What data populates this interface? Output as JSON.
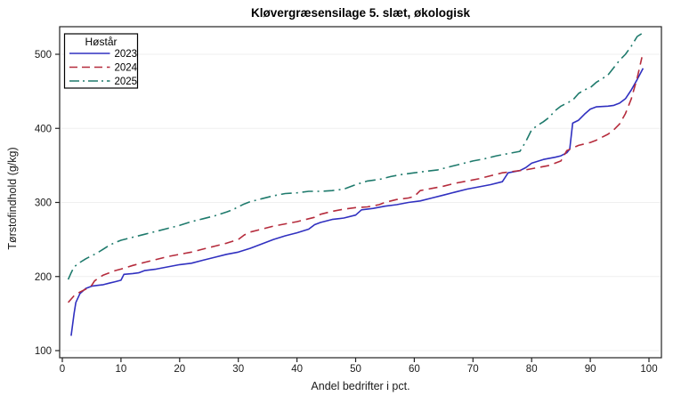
{
  "chart": {
    "background": "#ffffff",
    "plot_border_color": "#222222",
    "grid_color": "#efefef",
    "tick_color": "#222222",
    "text_color": "#1a1a1a"
  },
  "chart_data": {
    "type": "line",
    "title": "Kløvergræsensilage 5. slæt, økologisk",
    "xlabel": "Andel bedrifter i pct.",
    "ylabel": "Tørstofindhold (g/kg)",
    "xlim": [
      0,
      100
    ],
    "ylim": [
      100,
      530
    ],
    "x_ticks": [
      0,
      10,
      20,
      30,
      40,
      50,
      60,
      70,
      80,
      90,
      100
    ],
    "y_ticks": [
      100,
      200,
      300,
      400,
      500
    ],
    "grid": "horizontal-light",
    "legend": {
      "title": "Høstår",
      "position": "top-left-inside"
    },
    "series": [
      {
        "name": "2023",
        "color": "#3030C0",
        "style": "solid",
        "points": [
          [
            1.5,
            120
          ],
          [
            2,
            150
          ],
          [
            2.3,
            165
          ],
          [
            3,
            177
          ],
          [
            4,
            184
          ],
          [
            5,
            187
          ],
          [
            6,
            188
          ],
          [
            7,
            189
          ],
          [
            8,
            191
          ],
          [
            9,
            193
          ],
          [
            10,
            195
          ],
          [
            10.5,
            203
          ],
          [
            12,
            204
          ],
          [
            13,
            205
          ],
          [
            14,
            208
          ],
          [
            16,
            210
          ],
          [
            18,
            213
          ],
          [
            20,
            216
          ],
          [
            22,
            218
          ],
          [
            24,
            222
          ],
          [
            26,
            226
          ],
          [
            28,
            230
          ],
          [
            30,
            233
          ],
          [
            32,
            238
          ],
          [
            34,
            244
          ],
          [
            36,
            250
          ],
          [
            38,
            255
          ],
          [
            40,
            259
          ],
          [
            42,
            264
          ],
          [
            43,
            270
          ],
          [
            44,
            273
          ],
          [
            46,
            277
          ],
          [
            48,
            279
          ],
          [
            50,
            283
          ],
          [
            51,
            290
          ],
          [
            53,
            292
          ],
          [
            55,
            295
          ],
          [
            57,
            297
          ],
          [
            59,
            300
          ],
          [
            61,
            302
          ],
          [
            63,
            306
          ],
          [
            65,
            310
          ],
          [
            67,
            314
          ],
          [
            69,
            318
          ],
          [
            71,
            321
          ],
          [
            73,
            324
          ],
          [
            75,
            328
          ],
          [
            76,
            340
          ],
          [
            78,
            343
          ],
          [
            79,
            347
          ],
          [
            80,
            353
          ],
          [
            82,
            358
          ],
          [
            84,
            361
          ],
          [
            85,
            363
          ],
          [
            86,
            367
          ],
          [
            86.5,
            372
          ],
          [
            87,
            407
          ],
          [
            88,
            411
          ],
          [
            89,
            419
          ],
          [
            90,
            426
          ],
          [
            91,
            429
          ],
          [
            93,
            430
          ],
          [
            94,
            431
          ],
          [
            95,
            434
          ],
          [
            96,
            440
          ],
          [
            97,
            452
          ],
          [
            98,
            466
          ],
          [
            99,
            481
          ]
        ]
      },
      {
        "name": "2024",
        "color": "#B52B3C",
        "style": "dashed",
        "points": [
          [
            1,
            165
          ],
          [
            2,
            174
          ],
          [
            3,
            179
          ],
          [
            4,
            183
          ],
          [
            5,
            188
          ],
          [
            5.5,
            194
          ],
          [
            6,
            197
          ],
          [
            7,
            202
          ],
          [
            8,
            205
          ],
          [
            9,
            208
          ],
          [
            10,
            210
          ],
          [
            12,
            215
          ],
          [
            14,
            219
          ],
          [
            16,
            223
          ],
          [
            18,
            227
          ],
          [
            20,
            230
          ],
          [
            22,
            233
          ],
          [
            24,
            237
          ],
          [
            26,
            241
          ],
          [
            28,
            245
          ],
          [
            30,
            250
          ],
          [
            31,
            256
          ],
          [
            32,
            260
          ],
          [
            34,
            264
          ],
          [
            36,
            268
          ],
          [
            38,
            271
          ],
          [
            40,
            274
          ],
          [
            42,
            278
          ],
          [
            43,
            280
          ],
          [
            44,
            284
          ],
          [
            46,
            288
          ],
          [
            48,
            291
          ],
          [
            50,
            293
          ],
          [
            52,
            294
          ],
          [
            54,
            297
          ],
          [
            55,
            300
          ],
          [
            57,
            304
          ],
          [
            59,
            306
          ],
          [
            60,
            308
          ],
          [
            61,
            316
          ],
          [
            63,
            319
          ],
          [
            65,
            322
          ],
          [
            67,
            326
          ],
          [
            69,
            329
          ],
          [
            71,
            332
          ],
          [
            73,
            336
          ],
          [
            75,
            340
          ],
          [
            77,
            342
          ],
          [
            79,
            344
          ],
          [
            81,
            347
          ],
          [
            83,
            350
          ],
          [
            85,
            356
          ],
          [
            86,
            370
          ],
          [
            88,
            377
          ],
          [
            90,
            381
          ],
          [
            91,
            384
          ],
          [
            92,
            388
          ],
          [
            93,
            392
          ],
          [
            94,
            398
          ],
          [
            95,
            406
          ],
          [
            96,
            420
          ],
          [
            97,
            440
          ],
          [
            98,
            468
          ],
          [
            98.8,
            496
          ]
        ]
      },
      {
        "name": "2025",
        "color": "#1E7A6C",
        "style": "dash-dot",
        "points": [
          [
            1,
            196
          ],
          [
            1.5,
            205
          ],
          [
            2,
            213
          ],
          [
            3,
            219
          ],
          [
            4,
            224
          ],
          [
            5,
            228
          ],
          [
            6,
            232
          ],
          [
            7,
            237
          ],
          [
            8,
            242
          ],
          [
            9,
            246
          ],
          [
            10,
            249
          ],
          [
            12,
            253
          ],
          [
            14,
            257
          ],
          [
            16,
            261
          ],
          [
            18,
            265
          ],
          [
            20,
            269
          ],
          [
            22,
            274
          ],
          [
            24,
            278
          ],
          [
            26,
            282
          ],
          [
            28,
            287
          ],
          [
            29,
            290
          ],
          [
            30,
            294
          ],
          [
            31,
            298
          ],
          [
            32,
            301
          ],
          [
            34,
            305
          ],
          [
            36,
            309
          ],
          [
            38,
            312
          ],
          [
            40,
            313
          ],
          [
            42,
            315
          ],
          [
            44,
            315
          ],
          [
            46,
            316
          ],
          [
            48,
            318
          ],
          [
            49,
            321
          ],
          [
            50,
            324
          ],
          [
            52,
            329
          ],
          [
            54,
            331
          ],
          [
            56,
            335
          ],
          [
            58,
            338
          ],
          [
            60,
            340
          ],
          [
            62,
            342
          ],
          [
            64,
            344
          ],
          [
            66,
            348
          ],
          [
            68,
            352
          ],
          [
            70,
            356
          ],
          [
            72,
            359
          ],
          [
            74,
            363
          ],
          [
            76,
            366
          ],
          [
            78,
            369
          ],
          [
            79,
            382
          ],
          [
            80,
            398
          ],
          [
            81,
            404
          ],
          [
            82,
            409
          ],
          [
            83,
            415
          ],
          [
            84,
            424
          ],
          [
            85,
            430
          ],
          [
            86,
            434
          ],
          [
            87,
            438
          ],
          [
            88,
            447
          ],
          [
            89,
            452
          ],
          [
            90,
            455
          ],
          [
            91,
            462
          ],
          [
            92,
            467
          ],
          [
            93,
            472
          ],
          [
            94,
            482
          ],
          [
            95,
            492
          ],
          [
            96,
            500
          ],
          [
            97,
            511
          ],
          [
            98,
            524
          ],
          [
            99,
            529
          ]
        ]
      }
    ]
  }
}
